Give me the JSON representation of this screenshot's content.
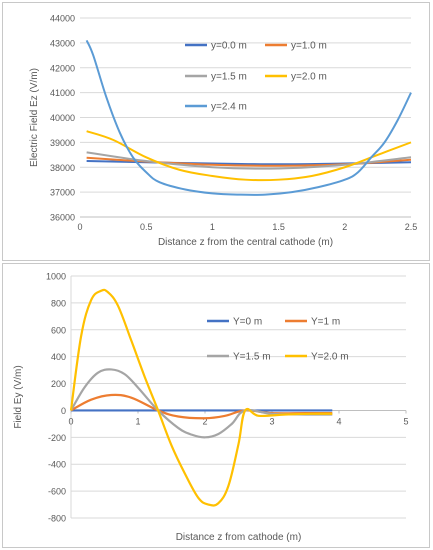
{
  "chart_data": [
    {
      "type": "line",
      "title": "",
      "xlabel": "Distance z from the central cathode (m)",
      "ylabel": "Electric Field Ez (V/m)",
      "xlim": [
        0,
        2.5
      ],
      "ylim": [
        36000,
        44000
      ],
      "xticks": [
        "0",
        "0.5",
        "1",
        "1.5",
        "2",
        "2.5"
      ],
      "yticks": [
        "36000",
        "37000",
        "38000",
        "39000",
        "40000",
        "41000",
        "42000",
        "43000",
        "44000"
      ],
      "grid": true,
      "legend_placement": "inside-top",
      "series": [
        {
          "name": "y=0.0 m",
          "color": "#4472c4",
          "x": [
            0.05,
            0.5,
            1.0,
            1.5,
            2.0,
            2.5
          ],
          "y": [
            38250,
            38200,
            38150,
            38120,
            38150,
            38200
          ]
        },
        {
          "name": "y=1.0 m",
          "color": "#ed7d31",
          "x": [
            0.05,
            0.5,
            1.0,
            1.5,
            2.0,
            2.5
          ],
          "y": [
            38380,
            38230,
            38100,
            38060,
            38120,
            38300
          ]
        },
        {
          "name": "y=1.5 m",
          "color": "#a5a5a5",
          "x": [
            0.05,
            0.5,
            1.0,
            1.5,
            2.0,
            2.5
          ],
          "y": [
            38600,
            38250,
            38000,
            37950,
            38100,
            38400
          ]
        },
        {
          "name": "y=2.0 m",
          "color": "#ffc000",
          "x": [
            0.05,
            0.25,
            0.5,
            0.75,
            1.0,
            1.25,
            1.5,
            1.75,
            2.0,
            2.25,
            2.5
          ],
          "y": [
            39450,
            39100,
            38400,
            37900,
            37650,
            37500,
            37500,
            37650,
            38000,
            38500,
            39000
          ]
        },
        {
          "name": "y=2.4 m",
          "color": "#5b9bd5",
          "x": [
            0.05,
            0.1,
            0.2,
            0.3,
            0.4,
            0.5,
            0.6,
            0.8,
            1.0,
            1.2,
            1.4,
            1.6,
            1.8,
            2.0,
            2.1,
            2.2,
            2.3,
            2.4,
            2.5
          ],
          "y": [
            43100,
            42500,
            40800,
            39400,
            38400,
            37800,
            37400,
            37100,
            36950,
            36900,
            36900,
            37000,
            37200,
            37500,
            37800,
            38400,
            39000,
            39900,
            41000
          ]
        }
      ]
    },
    {
      "type": "line",
      "title": "",
      "xlabel": "Distance z from cathode (m)",
      "ylabel": "Field Ey (V/m)",
      "xlim": [
        0,
        5
      ],
      "ylim": [
        -800,
        1000
      ],
      "xticks": [
        "0",
        "1",
        "2",
        "3",
        "4",
        "5"
      ],
      "yticks": [
        "-800",
        "-600",
        "-400",
        "-200",
        "0",
        "200",
        "400",
        "600",
        "800",
        "1000"
      ],
      "grid": true,
      "legend_placement": "inside-right",
      "series": [
        {
          "name": "Y=0 m",
          "color": "#4472c4",
          "x": [
            0,
            1.3,
            2.6,
            3.9
          ],
          "y": [
            0,
            0,
            0,
            0
          ]
        },
        {
          "name": "Y=1 m",
          "color": "#ed7d31",
          "x": [
            0,
            0.3,
            0.6,
            0.9,
            1.3,
            1.6,
            2.0,
            2.3,
            2.6,
            3.0,
            3.5,
            3.9
          ],
          "y": [
            0,
            80,
            115,
            95,
            0,
            -45,
            -58,
            -40,
            0,
            -20,
            -20,
            -20
          ]
        },
        {
          "name": "Y=1.5 m",
          "color": "#a5a5a5",
          "x": [
            0,
            0.2,
            0.4,
            0.6,
            0.8,
            1.0,
            1.3,
            1.6,
            1.8,
            2.0,
            2.2,
            2.4,
            2.6,
            3.0,
            3.5,
            3.9
          ],
          "y": [
            0,
            170,
            280,
            305,
            270,
            170,
            0,
            -130,
            -180,
            -200,
            -175,
            -100,
            0,
            -25,
            -30,
            -30
          ]
        },
        {
          "name": "Y=2.0 m",
          "color": "#ffc000",
          "x": [
            0,
            0.15,
            0.3,
            0.45,
            0.55,
            0.7,
            0.9,
            1.1,
            1.3,
            1.5,
            1.7,
            1.9,
            2.05,
            2.2,
            2.35,
            2.5,
            2.6,
            2.8,
            3.2,
            3.6,
            3.9
          ],
          "y": [
            0,
            550,
            820,
            890,
            880,
            780,
            520,
            250,
            0,
            -260,
            -470,
            -650,
            -700,
            -690,
            -560,
            -250,
            0,
            -40,
            -30,
            -25,
            -25
          ]
        }
      ]
    }
  ]
}
